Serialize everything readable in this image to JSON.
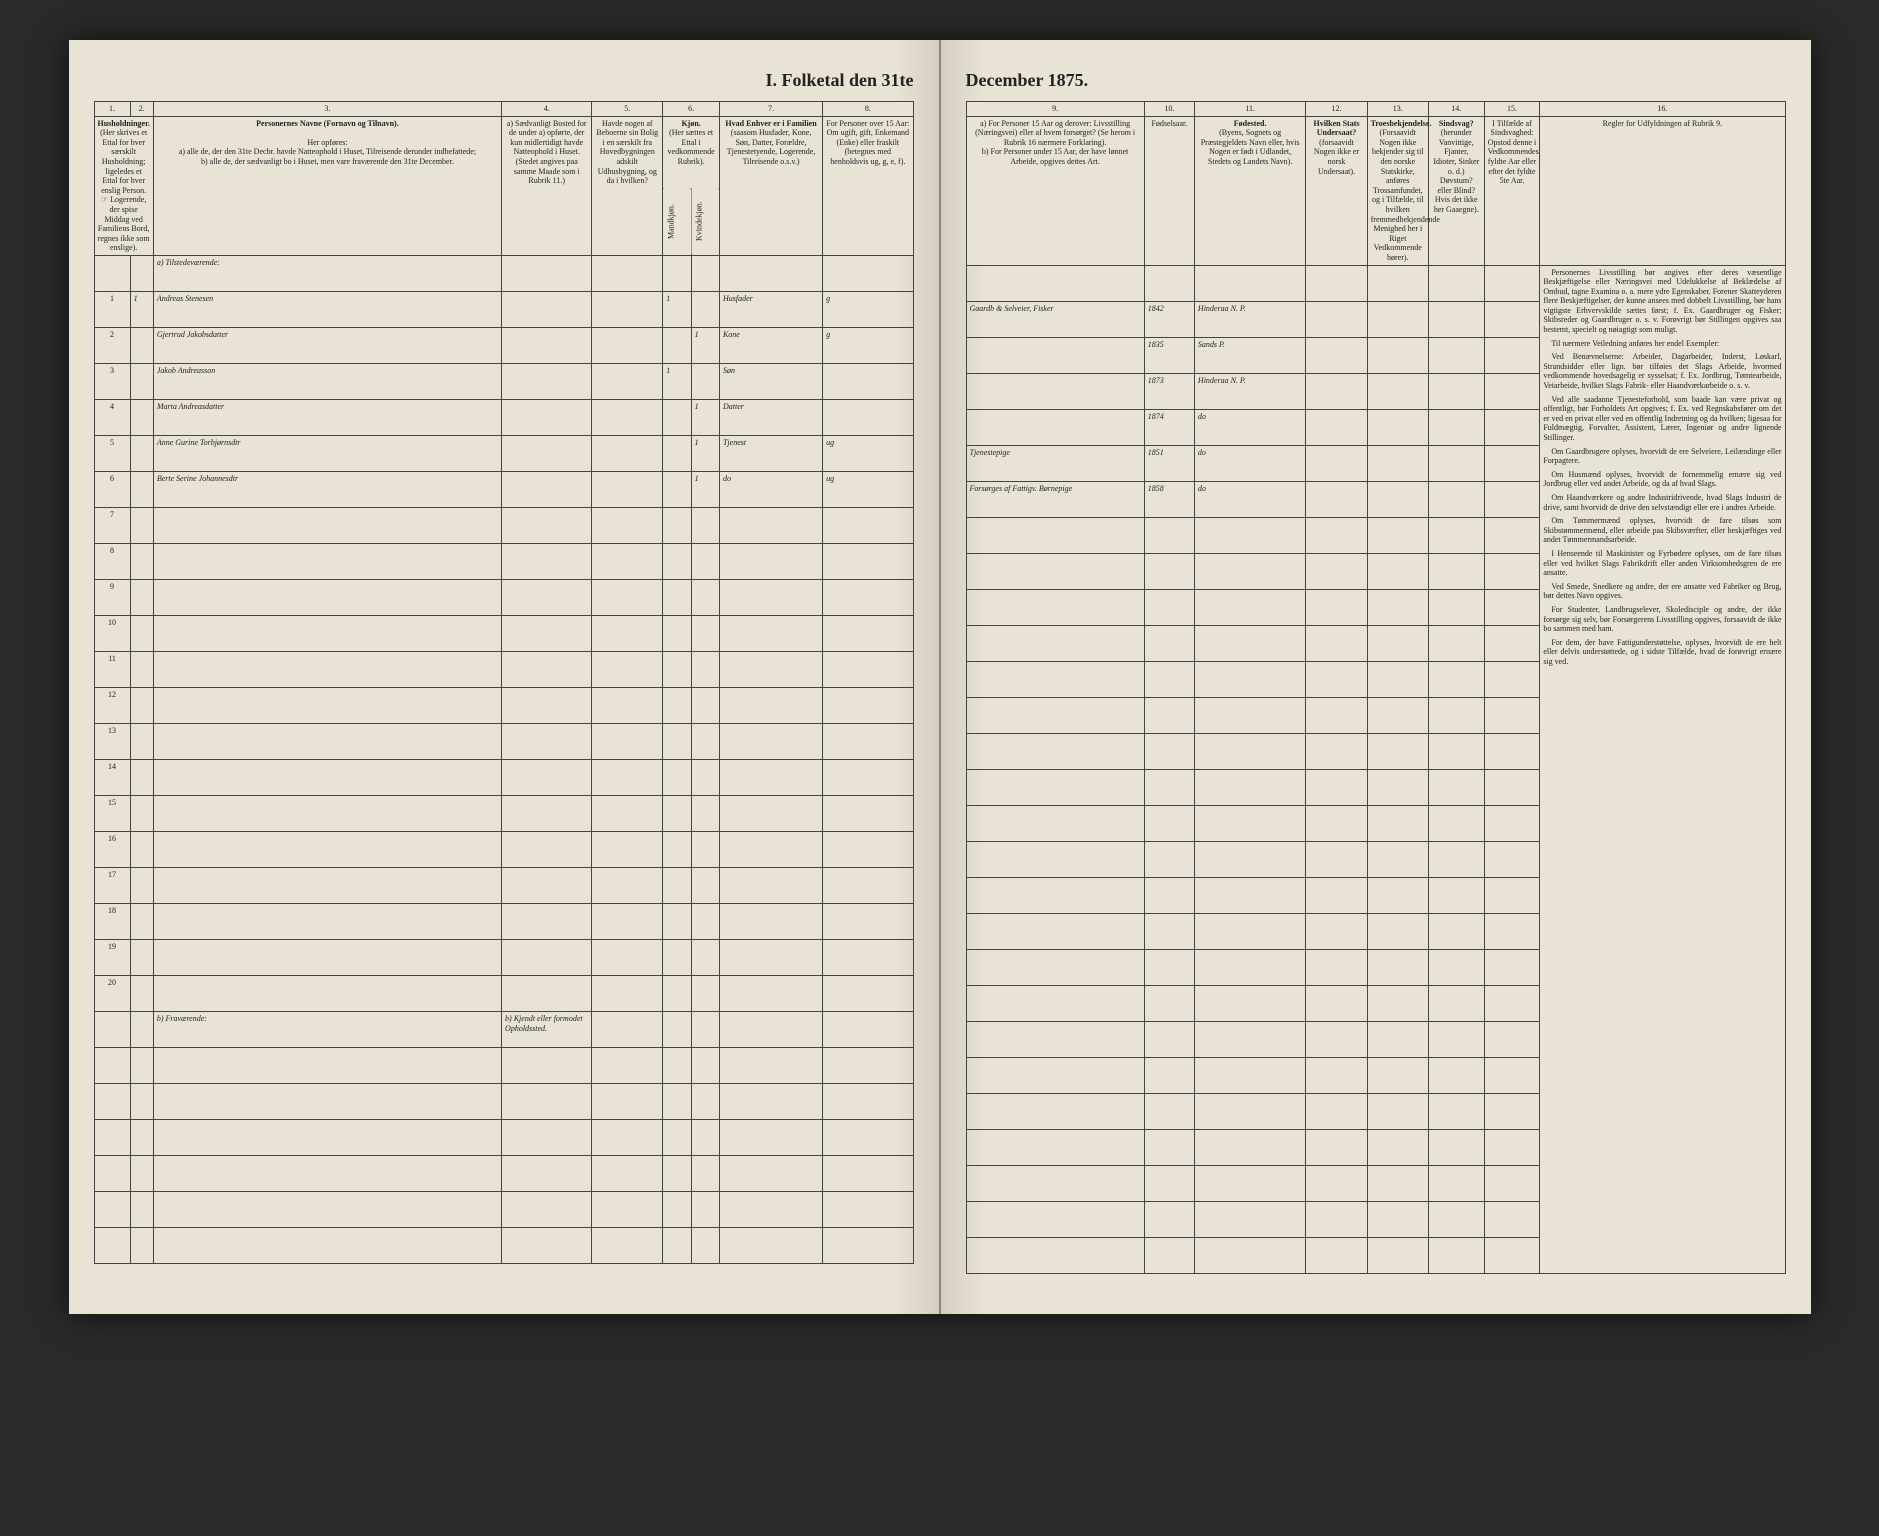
{
  "title_left": "I. Folketal den 31te",
  "title_right": "December 1875.",
  "columns_left": {
    "num1": "1.",
    "num2": "2.",
    "num3": "3.",
    "num4": "4.",
    "num5": "5.",
    "num6": "6.",
    "num7": "7.",
    "num8": "8.",
    "h1": "Husholdninger.",
    "h1b": "(Her skrives et Ettal for hver særskilt Husholdning; ligeledes et Ettal for hver enslig Person. ☞ Logerende, der spise Middag ved Familiens Bord, regnes ikke som enslige).",
    "h3": "Personernes Navne (Fornavn og Tilnavn).",
    "h3sub": "Her opføres:\na) alle de, der den 31te Decbr. havde Natteophold i Huset, Tilreisende derunder indbefattede;\nb) alle de, der sædvanligt bo i Huset, men vare fraværende den 31te December.",
    "h4": "a) Sædvanligt Bosted for de under a) opførte, der kun midlertidigt havde Natteophold i Huset.",
    "h4b": "(Stedet angives paa samme Maade som i Rubrik 11.)",
    "h5": "Havde nogen af Beboerne sin Bolig i en særskilt fra Hovedbygningen adskilt Udhusbygning, og da i hvilken?",
    "h6": "Kjøn.",
    "h6a": "Mandkjøn.",
    "h6b": "Kvindekjøn.",
    "h6sub": "(Her sættes et Ettal i vedkommende Rubrik).",
    "h7": "Hvad Enhver er i Familien",
    "h7sub": "(saasom Husfader, Kone, Søn, Datter, Forældre, Tjenestetyende, Logerende, Tilreisende o.s.v.)",
    "h8": "For Personer over 15 Aar: Om ugift, gift, Enkemand (Enke) eller fraskilt",
    "h8sub": "(betegnes med henholdsvis ug, g, e, f).",
    "section_a": "a) Tilstedeværende:",
    "section_b": "b) Fraværende:",
    "h4_b": "b) Kjendt eller formodet Opholdssted."
  },
  "columns_right": {
    "num9": "9.",
    "num10": "10.",
    "num11": "11.",
    "num12": "12.",
    "num13": "13.",
    "num14": "14.",
    "num15": "15.",
    "num16": "16.",
    "h9": "a) For Personer 15 Aar og derover: Livsstilling (Næringsvei) eller af hvem forsørget? (Se herom i Rubrik 16 nærmere Forklaring).\nb) For Personer under 15 Aar, der have lønnet Arbeide, opgives dettes Art.",
    "h10": "Fødselsaar.",
    "h11": "Fødested.",
    "h11sub": "(Byens, Sognets og Præstegjeldets Navn eller, hvis Nogen er født i Udlandet, Stedets og Landets Navn).",
    "h12": "Hvilken Stats Undersaat?",
    "h12sub": "(forsaavidt Nogen ikke er norsk Undersaat).",
    "h13": "Troesbekjendelse.",
    "h13sub": "(Forsaavidt Nogen ikke bekjender sig til den norske Statskirke, anføres Trossamfundet, og i Tilfælde, til hvilken fremmedbekjendende Menighed her i Riget Vedkommende hører).",
    "h14": "Sindsvag?",
    "h14sub": "(herunder Vanvittige, Fjanter, Idioter, Sinker o. d.) Døvstum? eller Blind? Hvis det ikke her Gaaegne).",
    "h15": "I Tilfælde af Sindsvaghed: Opstod denne i Vedkommendes fyldte Aar eller efter det fyldte 5te Aar.",
    "h16": "Regler for Udfyldningen af Rubrik 9."
  },
  "rows": [
    {
      "n": "1",
      "hh": "1",
      "name": "Andreas Stenesen",
      "m": "1",
      "k": "",
      "rel": "Husfader",
      "civ": "g",
      "occ": "Gaardb & Selveier, Fisker",
      "year": "1842",
      "place": "Hinderaa N. P."
    },
    {
      "n": "2",
      "hh": "",
      "name": "Gjertrud Jakobsdatter",
      "m": "",
      "k": "1",
      "rel": "Kone",
      "civ": "g",
      "occ": "",
      "year": "1835",
      "place": "Sands P."
    },
    {
      "n": "3",
      "hh": "",
      "name": "Jakob Andreasson",
      "m": "1",
      "k": "",
      "rel": "Søn",
      "civ": "",
      "occ": "",
      "year": "1873",
      "place": "Hinderaa N. P."
    },
    {
      "n": "4",
      "hh": "",
      "name": "Marta Andreasdatter",
      "m": "",
      "k": "1",
      "rel": "Datter",
      "civ": "",
      "occ": "",
      "year": "1874",
      "place": "do"
    },
    {
      "n": "5",
      "hh": "",
      "name": "Anne Gurine Torbjørnsdtr",
      "m": "",
      "k": "1",
      "rel": "Tjenest",
      "civ": "ug",
      "occ": "Tjenestepige",
      "year": "1851",
      "place": "do"
    },
    {
      "n": "6",
      "hh": "",
      "name": "Berte Serine Johannesdtr",
      "m": "",
      "k": "1",
      "rel": "do",
      "civ": "ug",
      "occ": "Forsørges af Fattigv. Børnepige",
      "year": "1858",
      "place": "do"
    }
  ],
  "empty_rows_left": [
    "7",
    "8",
    "9",
    "10",
    "11",
    "12",
    "13",
    "14",
    "15",
    "16",
    "17",
    "18",
    "19",
    "20"
  ],
  "regler": [
    "Personernes Livsstilling bør angives efter deres væsentlige Beskjæftigelse eller Næringsvei med Udelukkelse af Beklædelse af Ombud, tagne Examina o. a. mere ydre Egenskaber. Forener Skatteyderen flere Beskjæftigelser, der kunne ansees med dobbelt Livsstilling, bør hans vigtigste Erhvervskilde sættes først; f. Ex. Gaardbruger og Fisker; Skibsreder og Gaardbruger o. s. v. Forøvrigt bør Stillingen opgives saa bestemt, specielt og nøiagtigt som muligt.",
    "Til nærmere Veiledning anføres her endel Exempler:",
    "Ved Benævnelserne: Arbeider, Dagarbeider, Inderst, Løskarl, Strandsidder eller lign. bør tilføies det Slags Arbeide, hvormed vedkommende hovedsagelig er sysselsat; f. Ex. Jordbrug, Tømtearbeide, Veiarbeide, hvilket Slags Fabrik- eller Haandværkarbeide o. s. v.",
    "Ved alle saadanne Tjenesteforhold, som baade kan være privat og offentligt, bør Forholdets Art opgives; f. Ex. ved Regnskabsfører om det er ved en privat eller ved en offentlig Indretning og da hvilken; ligesaa for Fuldmægtig, Forvalter, Assistent, Lærer, Ingeniør og andre lignende Stillinger.",
    "Om Gaardbrugere oplyses, hvorvidt de ere Selveiere, Leilændinge eller Forpagtere.",
    "Om Husmænd oplyses, hvorvidt de fornemmelig ernære sig ved Jordbrug eller ved andet Arbeide, og da af hvad Slags.",
    "Om Haandværkere og andre Industridrivende, hvad Slags Industri de drive, samt hvorvidt de drive den selvstændigt eller ere i andres Arbeide.",
    "Om Tømmermænd oplyses, hvorvidt de fare tilsøs som Skibstømmermænd, eller arbeide paa Skibsværfter, eller beskjæftiges ved andet Tømmermandsarbeide.",
    "I Henseende til Maskinister og Fyrbødere oplyses, om de fare tilsøs eller ved hvilket Slags Fabrikdrift eller anden Virksomhedsgren de ere ansatte.",
    "Ved Smede, Snedkere og andre, der ere ansatte ved Fabriker og Brug, bør dettes Navn opgives.",
    "For Studenter, Landbrugselever, Skoledisciple og andre, der ikke forsørge sig selv, bør Forsørgerens Livsstilling opgives, forsaavidt de ikke bo sammen med ham.",
    "For dem, der have Fattigunderstøttelse, oplyses, hvorvidt de ere helt eller delvis understøttede, og i sidste Tilfælde, hvad de forøvrigt ernære sig ved."
  ]
}
